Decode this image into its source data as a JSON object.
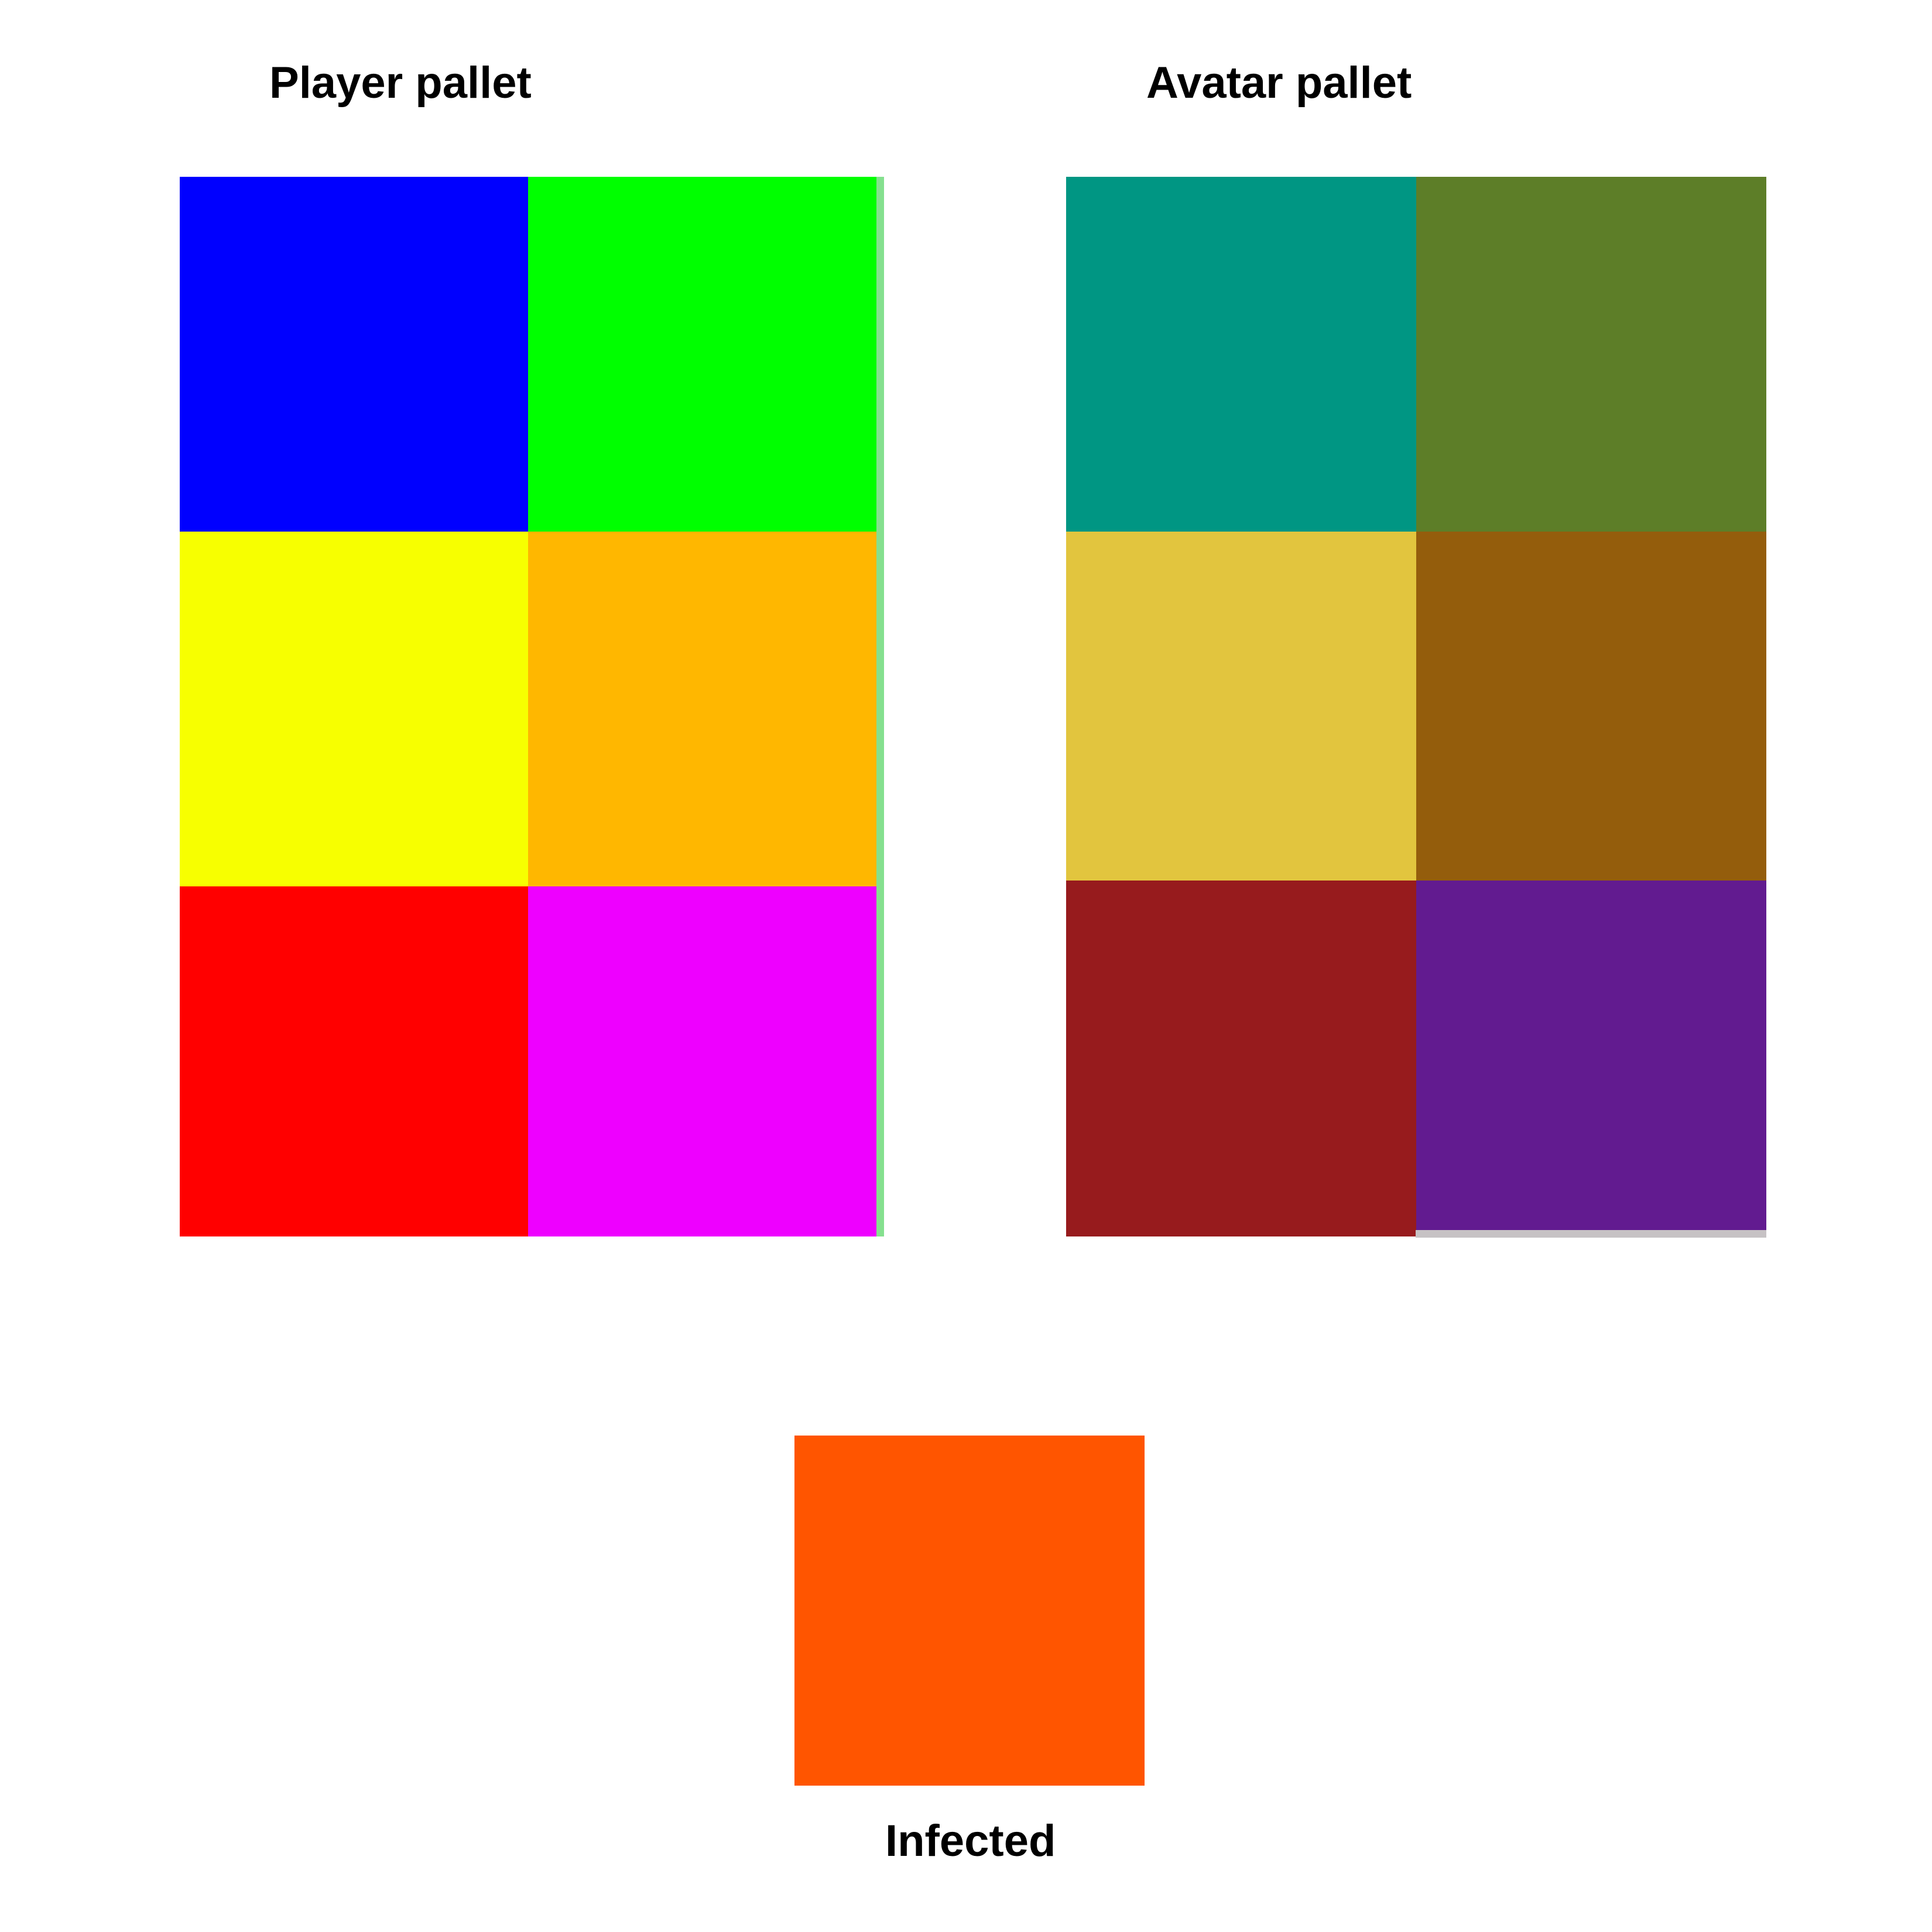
{
  "player_pallet": {
    "title": "Player pallet",
    "colors": [
      "#0000ff",
      "#00ff00",
      "#f7ff00",
      "#ffb700",
      "#ff0000",
      "#ee00ff"
    ]
  },
  "avatar_pallet": {
    "title": "Avatar pallet",
    "colors": [
      "#009683",
      "#5d7e28",
      "#e2c53e",
      "#945d0c",
      "#971b1d",
      "#621b90"
    ]
  },
  "infected": {
    "label": "Infected",
    "color": "#ff5500"
  }
}
